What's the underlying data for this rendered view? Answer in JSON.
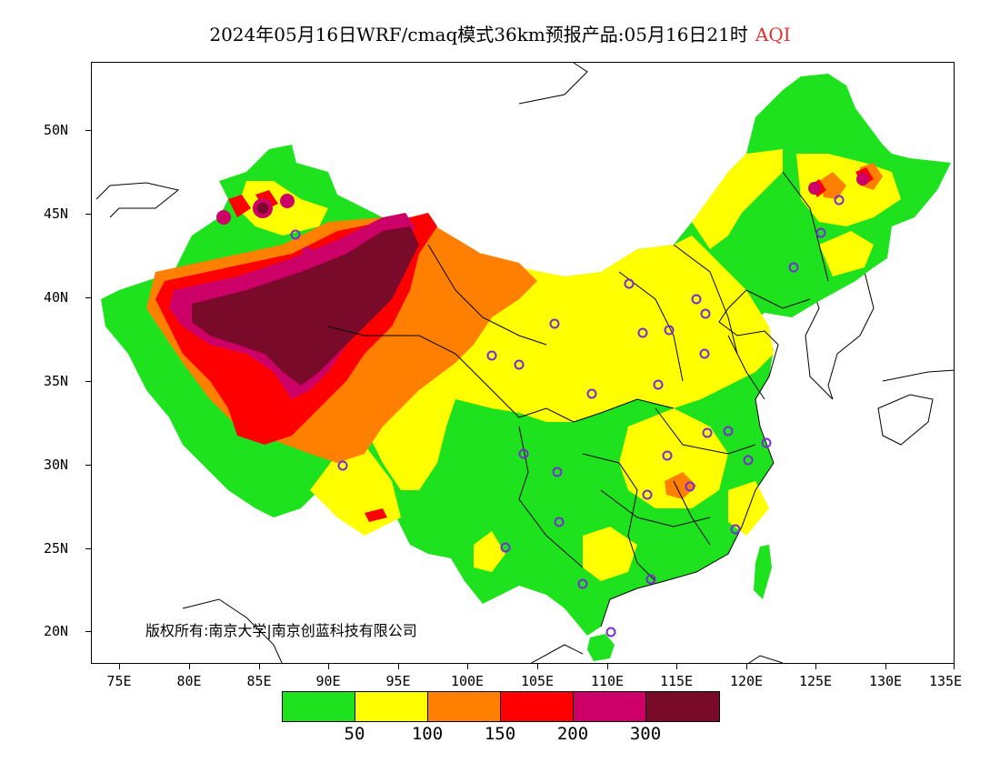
{
  "title": {
    "main": "2024年05月16日WRF/cmaq模式36km预报产品:05月16日21时",
    "variable": "AQI"
  },
  "axes": {
    "y_ticks": [
      "50N",
      "45N",
      "40N",
      "35N",
      "30N",
      "25N",
      "20N"
    ],
    "x_ticks": [
      "75E",
      "80E",
      "85E",
      "90E",
      "95E",
      "100E",
      "105E",
      "110E",
      "115E",
      "120E",
      "125E",
      "130E",
      "135E"
    ]
  },
  "copyright": "版权所有:南京大学|南京创蓝科技有限公司",
  "legend": {
    "colors": [
      "#1ee21e",
      "#ffff00",
      "#ff8000",
      "#ff0000",
      "#cc0066",
      "#7a0a2a"
    ],
    "labels": [
      "50",
      "100",
      "150",
      "200",
      "300"
    ]
  },
  "colors": {
    "good": "#1ee21e",
    "moderate": "#ffff00",
    "sensitive": "#ff8000",
    "unhealthy": "#ff0000",
    "very_unhealthy": "#cc0066",
    "hazardous": "#7a0a2a",
    "station_marker": "#7a2bd6"
  }
}
